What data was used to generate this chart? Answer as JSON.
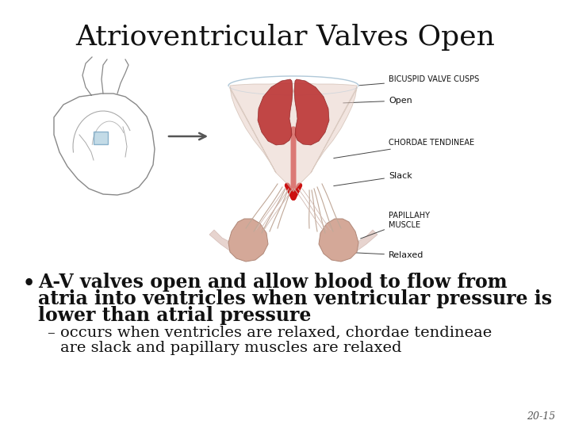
{
  "title": "Atrioventricular Valves Open",
  "title_fontsize": 26,
  "title_font": "serif",
  "background_color": "#ffffff",
  "bullet_text_line1": "A-V valves open and allow blood to flow from",
  "bullet_text_line2": "atria into ventricles when ventricular pressure is",
  "bullet_text_line3": "lower than atrial pressure",
  "sub_bullet_text_line1": "– occurs when ventricles are relaxed, chordae tendineae",
  "sub_bullet_text_line2": "  are slack and papillary muscles are relaxed",
  "bullet_fontsize": 17,
  "sub_bullet_fontsize": 14,
  "page_number": "20-15",
  "ann_bicuspid": "BICUSPID VALVE CUSPS",
  "ann_open": "Open",
  "ann_chordae": "CHORDAE TENDINEAE",
  "ann_slack": "Slack",
  "ann_papillary": "PAPILLAHY\nMUSCLE",
  "ann_relaxed": "Relaxed",
  "ann_fontsize": 7
}
